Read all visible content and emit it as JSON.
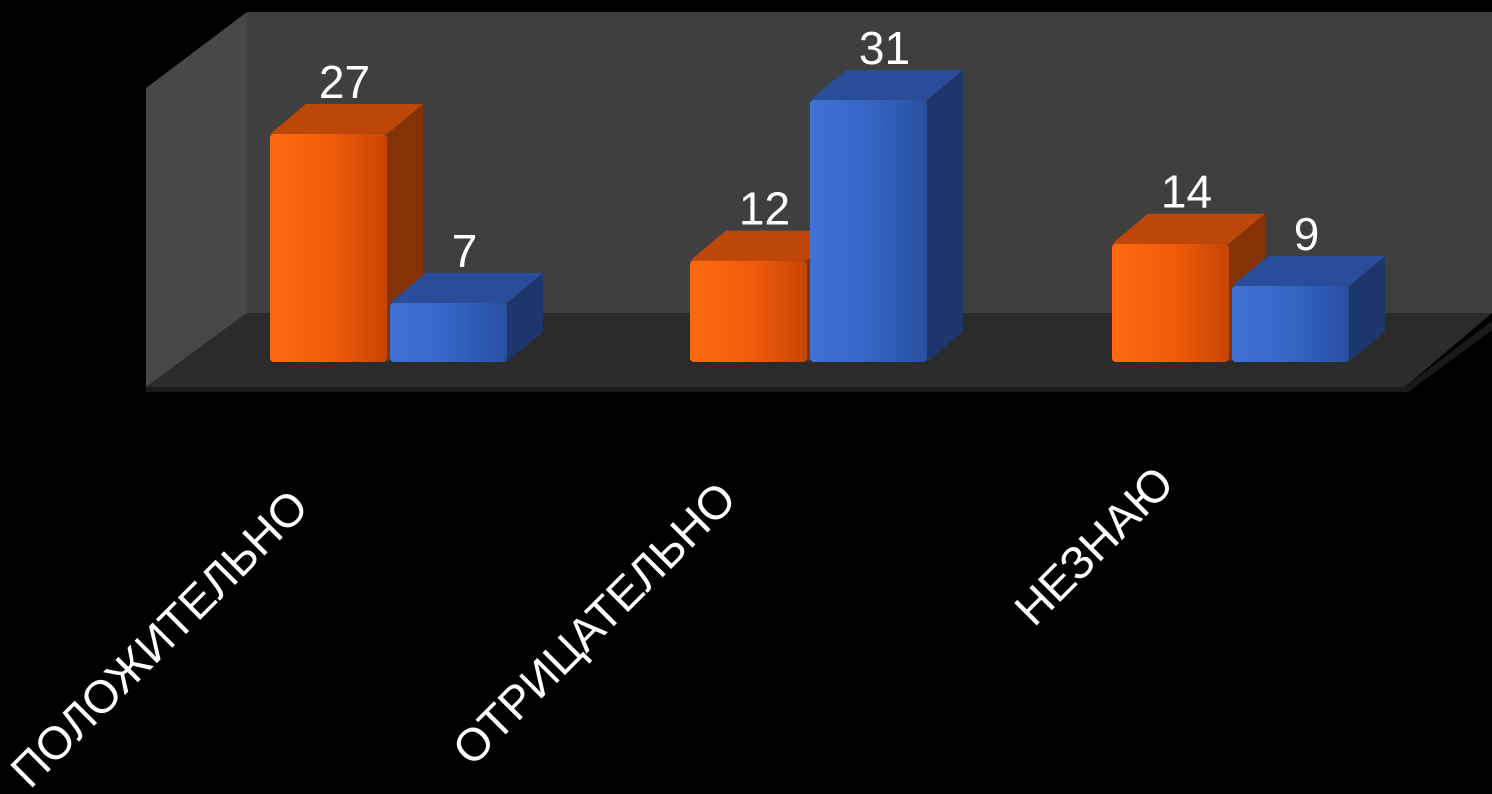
{
  "chart_data": {
    "type": "bar",
    "categories": [
      "ПОЛОЖИТЕЛЬНО",
      "ОТРИЦАТЕЛЬНО",
      "НЕЗНАЮ"
    ],
    "series": [
      {
        "values": [
          27,
          12,
          14
        ],
        "color": "#f25a0c"
      },
      {
        "values": [
          7,
          31,
          9
        ],
        "color": "#3563c4"
      }
    ],
    "ylim": [
      0,
      31
    ],
    "legend": "none",
    "grid": false
  }
}
